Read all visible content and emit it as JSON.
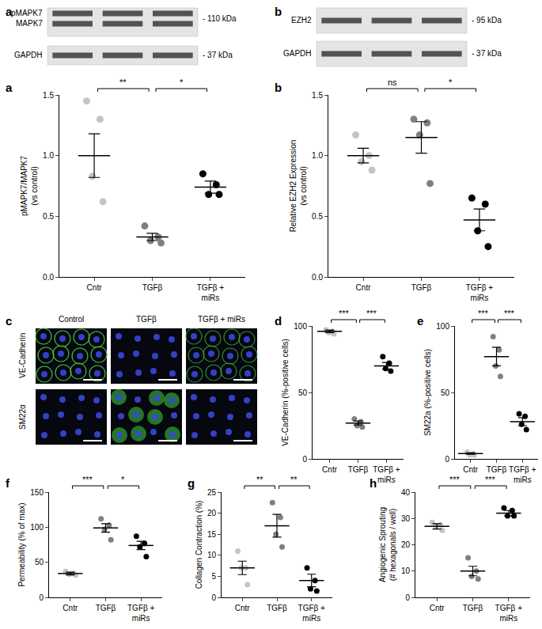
{
  "blots": [
    {
      "label": "a",
      "rows": [
        {
          "bands": [
            "pMAPK7",
            "MAPK7"
          ],
          "size": "- 110 kDa"
        },
        {
          "bands": [
            "GAPDH"
          ],
          "size": "- 37 kDa"
        }
      ]
    },
    {
      "label": "b",
      "rows": [
        {
          "bands": [
            "EZH2"
          ],
          "size": "- 95 kDa"
        },
        {
          "bands": [
            "GAPDH"
          ],
          "size": "- 37 kDa"
        }
      ]
    }
  ],
  "micrographs": {
    "label": "c",
    "columns": [
      "Control",
      "TGFβ",
      "TGFβ + miRs"
    ],
    "rows": [
      "VE-Cadherin",
      "SM22α"
    ]
  },
  "chart_data": [
    {
      "type": "scatter",
      "label": "a",
      "y_label": "pMAPK7/MAPK7\n(vs control)",
      "categories": [
        "Cntr",
        "TGFβ",
        "TGFβ + miRs"
      ],
      "colors": [
        "#c4c4c4",
        "#808080",
        "#000000"
      ],
      "values": [
        [
          1.45,
          1.3,
          0.83,
          0.62
        ],
        [
          0.42,
          0.33,
          0.3,
          0.28
        ],
        [
          0.85,
          0.76,
          0.68,
          0.68
        ]
      ],
      "means": [
        1.0,
        0.33,
        0.74
      ],
      "errors": [
        0.18,
        0.03,
        0.05
      ],
      "ylim": [
        0,
        1.5
      ],
      "yticks": [
        {
          "value": 0,
          "label": "0.0"
        },
        0.5,
        {
          "value": 1,
          "label": "1.0"
        },
        1.5
      ],
      "significance": [
        {
          "pair": [
            0,
            1
          ],
          "label": "**"
        },
        {
          "pair": [
            1,
            2
          ],
          "label": "*"
        }
      ]
    },
    {
      "type": "scatter",
      "label": "b",
      "y_label": "Relative EZH2 Expression\n(vs control)",
      "categories": [
        "Cntr",
        "TGFβ",
        "TGFβ + miRs"
      ],
      "colors": [
        "#c4c4c4",
        "#808080",
        "#000000"
      ],
      "values": [
        [
          1.17,
          1.0,
          0.95,
          0.88
        ],
        [
          1.3,
          1.27,
          1.17,
          0.77
        ],
        [
          0.65,
          0.6,
          0.38,
          0.25
        ]
      ],
      "means": [
        1.0,
        1.15,
        0.47
      ],
      "errors": [
        0.06,
        0.13,
        0.09
      ],
      "ylim": [
        0,
        1.5
      ],
      "yticks": [
        {
          "value": 0,
          "label": "0.0"
        },
        0.5,
        {
          "value": 1,
          "label": "1.0"
        },
        1.5
      ],
      "significance": [
        {
          "pair": [
            0,
            1
          ],
          "label": "ns"
        },
        {
          "pair": [
            1,
            2
          ],
          "label": "*"
        }
      ]
    },
    {
      "type": "scatter",
      "label": "d",
      "y_label": "VE-Cadherin (%-positive cells)",
      "categories": [
        "Cntr",
        "TGFβ",
        "TGFβ + miRs"
      ],
      "colors": [
        "#c4c4c4",
        "#808080",
        "#000000"
      ],
      "values": [
        [
          97,
          96,
          95,
          94
        ],
        [
          30,
          28,
          25,
          24
        ],
        [
          77,
          72,
          68,
          66
        ]
      ],
      "means": [
        96,
        27,
        70
      ],
      "errors": [
        1,
        1.5,
        2.5
      ],
      "ylim": [
        0,
        100
      ],
      "yticks": [
        0,
        50,
        100
      ],
      "significance": [
        {
          "pair": [
            0,
            1
          ],
          "label": "***"
        },
        {
          "pair": [
            1,
            2
          ],
          "label": "***"
        }
      ]
    },
    {
      "type": "scatter",
      "label": "e",
      "y_label": "SM22a (%-positive cells)",
      "categories": [
        "Cntr",
        "TGFβ",
        "TGFβ + miRs"
      ],
      "colors": [
        "#c4c4c4",
        "#808080",
        "#000000"
      ],
      "values": [
        [
          5,
          4,
          3,
          3
        ],
        [
          92,
          82,
          70,
          62
        ],
        [
          34,
          32,
          26,
          22
        ]
      ],
      "means": [
        4,
        77,
        28
      ],
      "errors": [
        0.5,
        7,
        3
      ],
      "ylim": [
        0,
        100
      ],
      "yticks": [
        0,
        50,
        100
      ],
      "significance": [
        {
          "pair": [
            0,
            1
          ],
          "label": "***"
        },
        {
          "pair": [
            1,
            2
          ],
          "label": "***"
        }
      ]
    },
    {
      "type": "scatter",
      "label": "f",
      "y_label": "Permeability (% of max)",
      "categories": [
        "Cntr",
        "TGFβ",
        "TGFβ + miRs"
      ],
      "colors": [
        "#c4c4c4",
        "#808080",
        "#000000"
      ],
      "values": [
        [
          37,
          34,
          33,
          32
        ],
        [
          112,
          103,
          97,
          82
        ],
        [
          87,
          77,
          72,
          58
        ]
      ],
      "means": [
        34,
        99,
        74
      ],
      "errors": [
        2,
        6,
        6
      ],
      "ylim": [
        0,
        150
      ],
      "yticks": [
        0,
        50,
        100,
        150
      ],
      "significance": [
        {
          "pair": [
            0,
            1
          ],
          "label": "***"
        },
        {
          "pair": [
            1,
            2
          ],
          "label": "*"
        }
      ]
    },
    {
      "type": "scatter",
      "label": "g",
      "y_label": "Collagen Contraction (%)",
      "categories": [
        "Cntr",
        "TGFβ",
        "TGFβ + miRs"
      ],
      "colors": [
        "#c4c4c4",
        "#808080",
        "#000000"
      ],
      "values": [
        [
          11,
          7,
          7,
          3
        ],
        [
          22.5,
          19,
          15,
          12
        ],
        [
          7,
          4,
          2,
          1.5
        ]
      ],
      "means": [
        7,
        17,
        4
      ],
      "errors": [
        1.6,
        2.7,
        1.5
      ],
      "ylim": [
        0,
        25
      ],
      "yticks": [
        0,
        5,
        10,
        15,
        20,
        25
      ],
      "significance": [
        {
          "pair": [
            0,
            1
          ],
          "label": "**"
        },
        {
          "pair": [
            1,
            2
          ],
          "label": "**"
        }
      ]
    },
    {
      "type": "scatter",
      "label": "h",
      "y_label": "Angiogenic Sprouting\n(# hexagonals / well)",
      "categories": [
        "Cntr",
        "TGFβ",
        "TGFβ + miRs"
      ],
      "colors": [
        "#c4c4c4",
        "#808080",
        "#000000"
      ],
      "values": [
        [
          28.5,
          27.5,
          27,
          25.5
        ],
        [
          15,
          10,
          8,
          7
        ],
        [
          34,
          33,
          31,
          31
        ]
      ],
      "means": [
        27,
        10,
        32
      ],
      "errors": [
        1,
        1.8,
        1
      ],
      "ylim": [
        0,
        40
      ],
      "yticks": [
        0,
        10,
        20,
        30,
        40
      ],
      "significance": [
        {
          "pair": [
            0,
            1
          ],
          "label": "***"
        },
        {
          "pair": [
            1,
            2
          ],
          "label": "***"
        }
      ]
    }
  ]
}
